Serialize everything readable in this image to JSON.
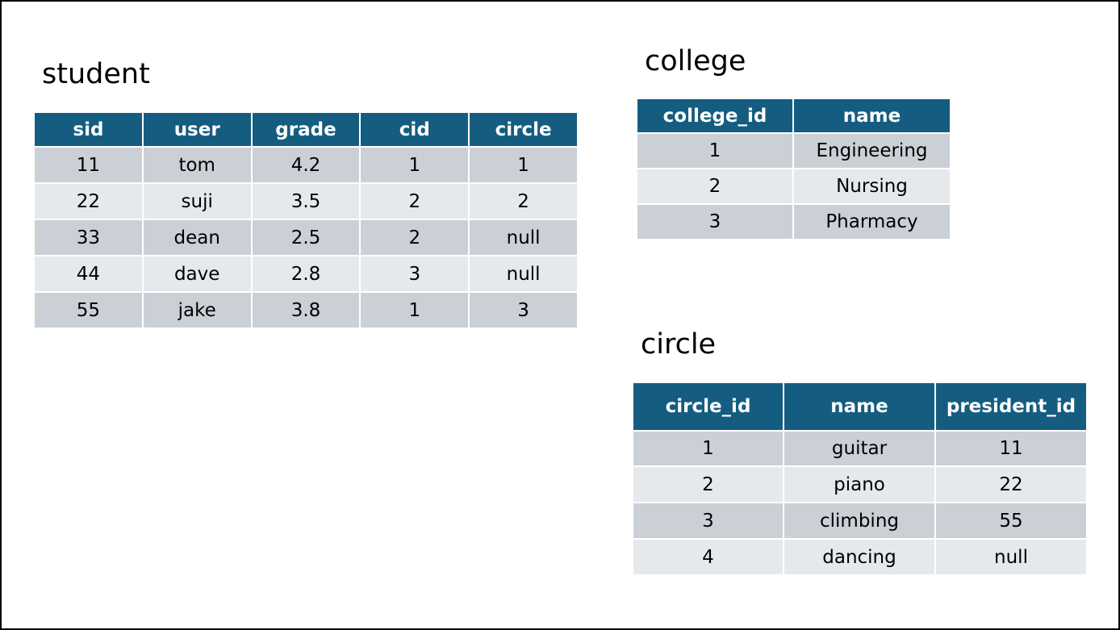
{
  "colors": {
    "header_bg": "#155d80",
    "row_dark": "#cbd0d7",
    "row_light": "#e6e9ec"
  },
  "student": {
    "title": "student",
    "columns": [
      "sid",
      "user",
      "grade",
      "cid",
      "circle"
    ],
    "rows": [
      [
        "11",
        "tom",
        "4.2",
        "1",
        "1"
      ],
      [
        "22",
        "suji",
        "3.5",
        "2",
        "2"
      ],
      [
        "33",
        "dean",
        "2.5",
        "2",
        "null"
      ],
      [
        "44",
        "dave",
        "2.8",
        "3",
        "null"
      ],
      [
        "55",
        "jake",
        "3.8",
        "1",
        "3"
      ]
    ]
  },
  "college": {
    "title": "college",
    "columns": [
      "college_id",
      "name"
    ],
    "rows": [
      [
        "1",
        "Engineering"
      ],
      [
        "2",
        "Nursing"
      ],
      [
        "3",
        "Pharmacy"
      ]
    ]
  },
  "circle": {
    "title": "circle",
    "columns": [
      "circle_id",
      "name",
      "president_id"
    ],
    "rows": [
      [
        "1",
        "guitar",
        "11"
      ],
      [
        "2",
        "piano",
        "22"
      ],
      [
        "3",
        "climbing",
        "55"
      ],
      [
        "4",
        "dancing",
        "null"
      ]
    ]
  }
}
